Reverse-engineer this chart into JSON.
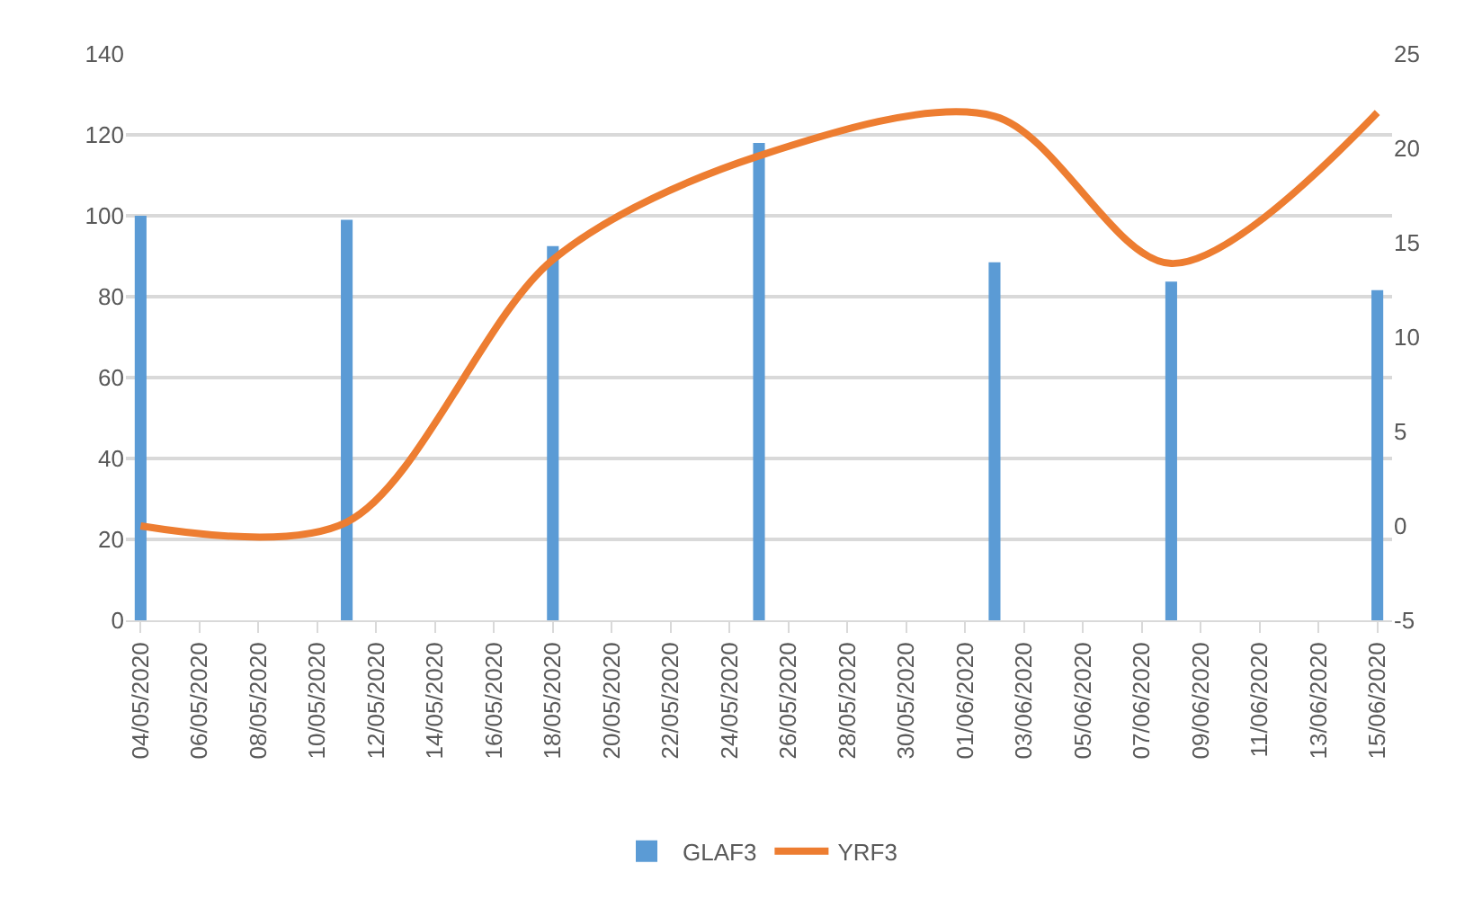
{
  "chart_data": {
    "type": "bar",
    "x": [
      "2020-05-04",
      "2020-05-11",
      "2020-05-18",
      "2020-05-25",
      "2020-06-02",
      "2020-06-08",
      "2020-06-15"
    ],
    "series": [
      {
        "name": "GLAF3",
        "color": "#5b9bd5",
        "values": [
          100,
          99,
          92.5,
          118,
          88.5,
          83.7,
          81.6
        ]
      },
      {
        "name": "YRF3",
        "type": "line",
        "axis": "y2",
        "color": "#ed7d31",
        "line_style": "solid",
        "values": [
          0,
          0.2,
          14.1,
          19.6,
          21.7,
          13.9,
          21.9
        ]
      }
    ],
    "xlim": [
      "2020-05-03T12:00",
      "2020-06-15T12:00"
    ],
    "xticks": [
      {
        "value": "2020-05-04",
        "label": "04/05/2020"
      },
      {
        "value": "2020-05-06",
        "label": "06/05/2020"
      },
      {
        "value": "2020-05-08",
        "label": "08/05/2020"
      },
      {
        "value": "2020-05-10",
        "label": "10/05/2020"
      },
      {
        "value": "2020-05-12",
        "label": "12/05/2020"
      },
      {
        "value": "2020-05-14",
        "label": "14/05/2020"
      },
      {
        "value": "2020-05-16",
        "label": "16/05/2020"
      },
      {
        "value": "2020-05-18",
        "label": "18/05/2020"
      },
      {
        "value": "2020-05-20",
        "label": "20/05/2020"
      },
      {
        "value": "2020-05-22",
        "label": "22/05/2020"
      },
      {
        "value": "2020-05-24",
        "label": "24/05/2020"
      },
      {
        "value": "2020-05-26",
        "label": "26/05/2020"
      },
      {
        "value": "2020-05-28",
        "label": "28/05/2020"
      },
      {
        "value": "2020-05-30",
        "label": "30/05/2020"
      },
      {
        "value": "2020-06-01",
        "label": "01/06/2020"
      },
      {
        "value": "2020-06-03",
        "label": "03/06/2020"
      },
      {
        "value": "2020-06-05",
        "label": "05/06/2020"
      },
      {
        "value": "2020-06-07",
        "label": "07/06/2020"
      },
      {
        "value": "2020-06-09",
        "label": "09/06/2020"
      },
      {
        "value": "2020-06-11",
        "label": "11/06/2020"
      },
      {
        "value": "2020-06-13",
        "label": "13/06/2020"
      },
      {
        "value": "2020-06-15",
        "label": "15/06/2020"
      }
    ],
    "ylim": [
      0,
      140
    ],
    "yticks": [
      0,
      20,
      40,
      60,
      80,
      100,
      120,
      140
    ],
    "y2lim": [
      -5,
      25
    ],
    "y2ticks": [
      -5,
      0,
      5,
      10,
      15,
      20,
      25
    ],
    "grid": "y",
    "legend": "bottom",
    "marker": "none"
  }
}
